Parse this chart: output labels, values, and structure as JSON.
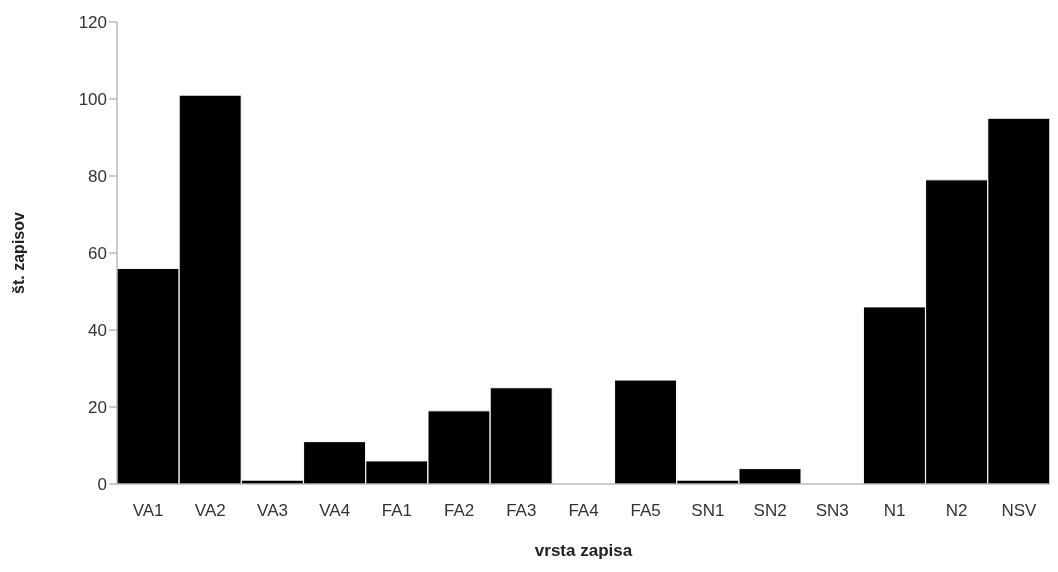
{
  "chart_data": {
    "type": "bar",
    "xlabel": "vrsta zapisa",
    "ylabel": "št. zapisov",
    "categories": [
      "VA1",
      "VA2",
      "VA3",
      "VA4",
      "FA1",
      "FA2",
      "FA3",
      "FA4",
      "FA5",
      "SN1",
      "SN2",
      "SN3",
      "N1",
      "N2",
      "NSV"
    ],
    "values": [
      56,
      101,
      1,
      11,
      6,
      19,
      25,
      0,
      27,
      1,
      4,
      0,
      46,
      79,
      95
    ],
    "color": "#000000",
    "ylim": [
      0,
      120
    ],
    "yticks": [
      0,
      20,
      40,
      60,
      80,
      100,
      120
    ],
    "grid": false,
    "legend": false
  }
}
